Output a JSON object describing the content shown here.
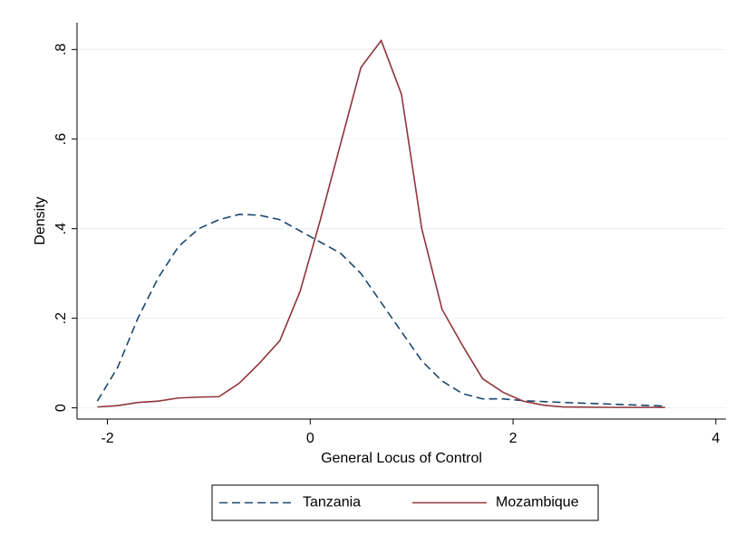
{
  "chart_data": {
    "type": "line",
    "x_label": "General Locus of Control",
    "y_label": "Density",
    "x": [
      -2.1,
      -1.9,
      -1.7,
      -1.5,
      -1.3,
      -1.1,
      -0.9,
      -0.7,
      -0.5,
      -0.3,
      -0.1,
      0.1,
      0.3,
      0.5,
      0.7,
      0.9,
      1.1,
      1.3,
      1.5,
      1.7,
      1.9,
      2.1,
      2.3,
      2.5,
      3.0,
      3.5
    ],
    "series": [
      {
        "name": "Tanzania",
        "color": "#1a476f",
        "style": "dashed",
        "values": [
          0.015,
          0.09,
          0.2,
          0.29,
          0.36,
          0.4,
          0.42,
          0.432,
          0.43,
          0.42,
          0.395,
          0.37,
          0.345,
          0.3,
          0.235,
          0.17,
          0.105,
          0.06,
          0.032,
          0.02,
          0.02,
          0.016,
          0.014,
          0.012,
          0.008,
          0.004
        ]
      },
      {
        "name": "Mozambique",
        "color": "#90353b",
        "style": "solid",
        "values": [
          0.002,
          0.005,
          0.012,
          0.015,
          0.022,
          0.024,
          0.025,
          0.055,
          0.1,
          0.15,
          0.26,
          0.42,
          0.59,
          0.76,
          0.82,
          0.7,
          0.4,
          0.22,
          0.14,
          0.065,
          0.035,
          0.015,
          0.006,
          0.002,
          0.001,
          0.001
        ]
      }
    ],
    "xlim": [
      -2.3,
      4.1
    ],
    "xticks": [
      -2,
      0,
      2,
      4
    ],
    "ylim": [
      -0.025,
      0.86
    ],
    "yticks": [
      0,
      {
        "value": 0.2,
        "label": ".2"
      },
      {
        "value": 0.4,
        "label": ".4"
      },
      {
        "value": 0.6,
        "label": ".6"
      },
      {
        "value": 0.8,
        "label": ".8"
      }
    ],
    "grid": true,
    "legend": "bottom"
  }
}
